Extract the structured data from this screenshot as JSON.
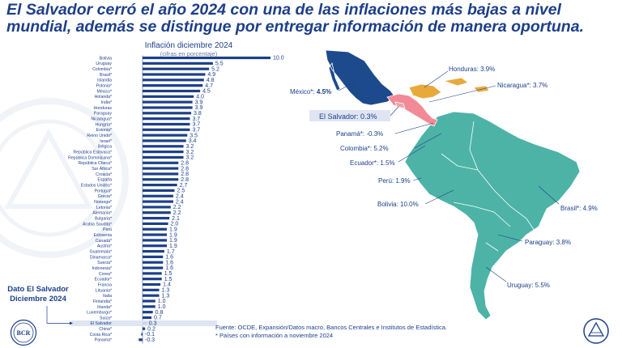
{
  "headline": "El Salvador cerró el año 2024 con una de las inflaciones más bajas a nivel mundial, además se distingue por entregar información de manera oportuna.",
  "side_label": {
    "line1": "Dato El Salvador",
    "line2": "Diciembre 2024"
  },
  "source": {
    "line1": "Fuente: OCDE, Expansión/Datos macro, Bancos Centrales e Institutos de Estadística.",
    "line2": "* Países con información a noviembre 2024"
  },
  "colors": {
    "bar": "#1d3f8a",
    "highlight_bar": "#c9d3ea",
    "highlight_band": "#dfe5f2",
    "map_teal": "#4db3a6",
    "map_mexico": "#1d4a8c",
    "map_honduras": "#e8a93a",
    "map_salvador": "#f2a1a8",
    "map_central": "#f28a96",
    "text": "#1d3f8a"
  },
  "chart_data": {
    "type": "bar",
    "orientation": "horizontal",
    "title": "Inflación diciembre 2024",
    "subtitle": "(cifras en porcentaje)",
    "highlight": "El Salvador",
    "xlim": [
      -0.3,
      10.0
    ],
    "categories": [
      "Bolivia",
      "Uruguay",
      "Colombia*",
      "Brasil*",
      "Islandia",
      "Polonia*",
      "México*",
      "Holanda*",
      "India*",
      "Honduras",
      "Paraguay",
      "Nicaragua*",
      "Hungría*",
      "Estonia*",
      "Reino Unido*",
      "Israel*",
      "Bélgica",
      "República Eslovaca*",
      "República Dominicana*",
      "República Checa*",
      "Sur África*",
      "Croacia*",
      "España",
      "Estados Unidos*",
      "Portugal*",
      "Grecia*",
      "Noruega*",
      "Letonia*",
      "Alemania*",
      "Bulgaria*",
      "Arabia Saudita*",
      "Perú",
      "Eslovenia",
      "Canadá*",
      "Austria*",
      "Guatemala*",
      "Dinamarca*",
      "Suecia*",
      "Indonesia*",
      "Corea*",
      "Ecuador*",
      "Francia",
      "Lituania*",
      "Italia",
      "Finlandia*",
      "Irlanda*",
      "Luxemburgo*",
      "Suiza*",
      "El Salvador",
      "China*",
      "Costa Rica*",
      "Panamá*"
    ],
    "values": [
      10.0,
      5.5,
      5.2,
      4.9,
      4.8,
      4.7,
      4.5,
      4.0,
      3.9,
      3.9,
      3.8,
      3.7,
      3.7,
      3.7,
      3.5,
      3.4,
      3.2,
      3.2,
      3.2,
      2.8,
      2.8,
      2.8,
      2.8,
      2.7,
      2.5,
      2.4,
      2.4,
      2.2,
      2.2,
      2.1,
      2.0,
      1.9,
      1.9,
      1.9,
      1.9,
      1.7,
      1.6,
      1.6,
      1.6,
      1.5,
      1.5,
      1.4,
      1.3,
      1.3,
      1.0,
      1.0,
      0.8,
      0.7,
      0.3,
      0.2,
      -0.1,
      -0.3
    ],
    "value_labels": [
      "10.0",
      "5.5",
      "5.2",
      "4.9",
      "4.8",
      "4.7",
      "4.5",
      "4.0",
      "3.9",
      "3.9",
      "3.8",
      "3.7",
      "3.7",
      "3.7",
      "3.5",
      "3.4",
      "3.2",
      "3.2",
      "3.2",
      "2.8",
      "2.8",
      "2.8",
      "2.8",
      "2.7",
      "2.5",
      "2.4",
      "2.4",
      "2.2",
      "2.2",
      "2.1",
      "2.0",
      "1.9",
      "1.9",
      "1.9",
      "1.9",
      "1.7",
      "1.6",
      "1.6",
      "1.6",
      "1.5",
      "1.5",
      "1.4",
      "1.3",
      "1.3",
      "1.0",
      "1.0",
      "0.8",
      "0.7",
      "0.3",
      "0.2",
      "-0.1",
      "-0.3"
    ]
  },
  "map": {
    "labels": [
      {
        "id": "honduras",
        "text": "Honduras: 3.9%"
      },
      {
        "id": "nicaragua",
        "text": "Nicaragua*: 3.7%"
      },
      {
        "id": "mexico",
        "text": "México*: ",
        "value": "4.5%"
      },
      {
        "id": "elsalvador",
        "text": "El Salvador: 0.3%"
      },
      {
        "id": "panama",
        "text": "Panamá*: -0.3%"
      },
      {
        "id": "colombia",
        "text": "Colombia*: 5.2%"
      },
      {
        "id": "ecuador",
        "text": "Ecuador*: 1.5%"
      },
      {
        "id": "peru",
        "text": "Perú: 1.9%"
      },
      {
        "id": "bolivia",
        "text": "Bolivia: 10.0%"
      },
      {
        "id": "brasil",
        "text": "Brasil*: 4.9%"
      },
      {
        "id": "paraguay",
        "text": "Paraguay: 3.8%"
      },
      {
        "id": "uruguay",
        "text": "Uruguay: 5.5%"
      }
    ]
  },
  "seal_left_text": "BCR",
  "icons": {
    "left": "central-bank-seal-icon",
    "right": "el-salvador-coat-of-arms-icon"
  }
}
